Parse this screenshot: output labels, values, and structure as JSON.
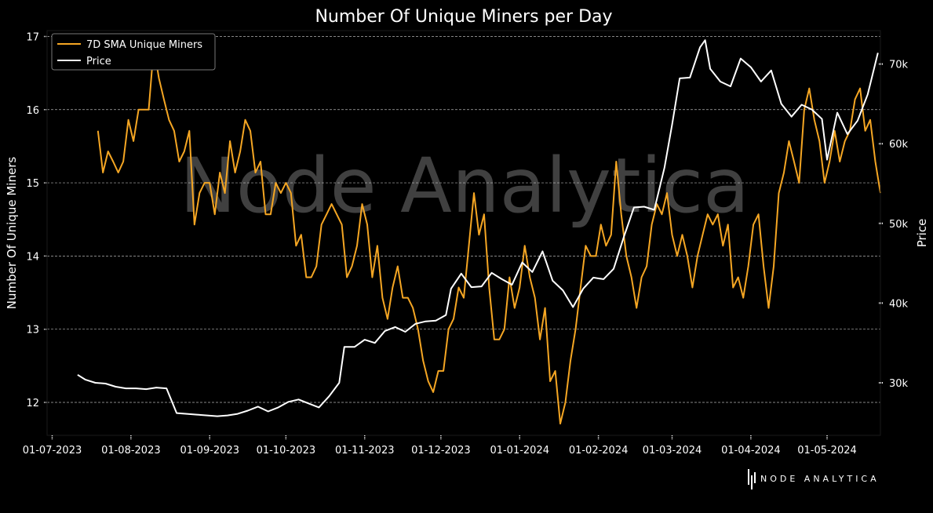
{
  "chart_data": {
    "type": "line",
    "title": "Number Of Unique Miners per Day",
    "ylabel": "Number Of Unique Miners",
    "y2label": "Price",
    "xlim": [
      "2023-06-29",
      "2024-05-22"
    ],
    "ylim": [
      11.55,
      17.08
    ],
    "y2lim": [
      23400,
      74200
    ],
    "x_ticks": [
      "2023-07-01",
      "2023-08-01",
      "2023-09-01",
      "2023-10-01",
      "2023-11-01",
      "2023-12-01",
      "2024-01-01",
      "2024-02-01",
      "2024-03-01",
      "2024-04-01",
      "2024-05-01"
    ],
    "x_tick_labels": [
      "01-07-2023",
      "01-08-2023",
      "01-09-2023",
      "01-10-2023",
      "01-11-2023",
      "01-12-2023",
      "01-01-2024",
      "01-02-2024",
      "01-03-2024",
      "01-04-2024",
      "01-05-2024"
    ],
    "y_ticks": [
      12,
      13,
      14,
      15,
      16,
      17
    ],
    "y_tick_labels": [
      "12",
      "13",
      "14",
      "15",
      "16",
      "17"
    ],
    "y2_ticks": [
      30000,
      40000,
      50000,
      60000,
      70000
    ],
    "y2_tick_labels": [
      "30k",
      "40k",
      "50k",
      "60k",
      "70k"
    ],
    "grid": "horizontal dashed",
    "legend": "top-left",
    "watermark": "Node Analytica",
    "logo": "NODE ANALYTICA",
    "series": [
      {
        "name": "7D SMA Unique Miners",
        "axis": "left",
        "color": "#f5a623",
        "points": [
          [
            "2023-07-19",
            15.71
          ],
          [
            "2023-07-21",
            15.14
          ],
          [
            "2023-07-23",
            15.43
          ],
          [
            "2023-07-25",
            15.29
          ],
          [
            "2023-07-27",
            15.14
          ],
          [
            "2023-07-29",
            15.29
          ],
          [
            "2023-07-31",
            15.86
          ],
          [
            "2023-08-02",
            15.57
          ],
          [
            "2023-08-04",
            16.0
          ],
          [
            "2023-08-06",
            16.0
          ],
          [
            "2023-08-08",
            16.0
          ],
          [
            "2023-08-10",
            16.86
          ],
          [
            "2023-08-12",
            16.43
          ],
          [
            "2023-08-14",
            16.14
          ],
          [
            "2023-08-16",
            15.86
          ],
          [
            "2023-08-18",
            15.71
          ],
          [
            "2023-08-20",
            15.29
          ],
          [
            "2023-08-22",
            15.43
          ],
          [
            "2023-08-24",
            15.71
          ],
          [
            "2023-08-26",
            14.43
          ],
          [
            "2023-08-28",
            14.86
          ],
          [
            "2023-08-30",
            15.0
          ],
          [
            "2023-09-01",
            15.0
          ],
          [
            "2023-09-03",
            14.57
          ],
          [
            "2023-09-05",
            15.14
          ],
          [
            "2023-09-07",
            14.86
          ],
          [
            "2023-09-09",
            15.57
          ],
          [
            "2023-09-11",
            15.14
          ],
          [
            "2023-09-13",
            15.43
          ],
          [
            "2023-09-15",
            15.86
          ],
          [
            "2023-09-17",
            15.71
          ],
          [
            "2023-09-19",
            15.14
          ],
          [
            "2023-09-21",
            15.29
          ],
          [
            "2023-09-23",
            14.57
          ],
          [
            "2023-09-25",
            14.57
          ],
          [
            "2023-09-27",
            15.0
          ],
          [
            "2023-09-29",
            14.86
          ],
          [
            "2023-10-01",
            15.0
          ],
          [
            "2023-10-03",
            14.86
          ],
          [
            "2023-10-05",
            14.14
          ],
          [
            "2023-10-07",
            14.29
          ],
          [
            "2023-10-09",
            13.71
          ],
          [
            "2023-10-11",
            13.71
          ],
          [
            "2023-10-13",
            13.86
          ],
          [
            "2023-10-15",
            14.43
          ],
          [
            "2023-10-17",
            14.57
          ],
          [
            "2023-10-19",
            14.71
          ],
          [
            "2023-10-21",
            14.57
          ],
          [
            "2023-10-23",
            14.43
          ],
          [
            "2023-10-25",
            13.71
          ],
          [
            "2023-10-27",
            13.86
          ],
          [
            "2023-10-29",
            14.14
          ],
          [
            "2023-10-31",
            14.71
          ],
          [
            "2023-11-02",
            14.43
          ],
          [
            "2023-11-04",
            13.71
          ],
          [
            "2023-11-06",
            14.14
          ],
          [
            "2023-11-08",
            13.43
          ],
          [
            "2023-11-10",
            13.14
          ],
          [
            "2023-11-12",
            13.57
          ],
          [
            "2023-11-14",
            13.86
          ],
          [
            "2023-11-16",
            13.43
          ],
          [
            "2023-11-18",
            13.43
          ],
          [
            "2023-11-20",
            13.29
          ],
          [
            "2023-11-22",
            13.0
          ],
          [
            "2023-11-24",
            12.57
          ],
          [
            "2023-11-26",
            12.29
          ],
          [
            "2023-11-28",
            12.14
          ],
          [
            "2023-11-30",
            12.43
          ],
          [
            "2023-12-02",
            12.43
          ],
          [
            "2023-12-04",
            13.0
          ],
          [
            "2023-12-06",
            13.14
          ],
          [
            "2023-12-08",
            13.57
          ],
          [
            "2023-12-10",
            13.43
          ],
          [
            "2023-12-12",
            14.14
          ],
          [
            "2023-12-14",
            14.86
          ],
          [
            "2023-12-16",
            14.29
          ],
          [
            "2023-12-18",
            14.57
          ],
          [
            "2023-12-20",
            13.57
          ],
          [
            "2023-12-22",
            12.86
          ],
          [
            "2023-12-24",
            12.86
          ],
          [
            "2023-12-26",
            13.0
          ],
          [
            "2023-12-28",
            13.71
          ],
          [
            "2023-12-30",
            13.29
          ],
          [
            "2024-01-01",
            13.57
          ],
          [
            "2024-01-03",
            14.14
          ],
          [
            "2024-01-05",
            13.71
          ],
          [
            "2024-01-07",
            13.43
          ],
          [
            "2024-01-09",
            12.86
          ],
          [
            "2024-01-11",
            13.29
          ],
          [
            "2024-01-13",
            12.29
          ],
          [
            "2024-01-15",
            12.43
          ],
          [
            "2024-01-17",
            11.71
          ],
          [
            "2024-01-19",
            12.0
          ],
          [
            "2024-01-21",
            12.57
          ],
          [
            "2024-01-23",
            13.0
          ],
          [
            "2024-01-25",
            13.57
          ],
          [
            "2024-01-27",
            14.14
          ],
          [
            "2024-01-29",
            14.0
          ],
          [
            "2024-01-31",
            14.0
          ],
          [
            "2024-02-02",
            14.43
          ],
          [
            "2024-02-04",
            14.14
          ],
          [
            "2024-02-06",
            14.29
          ],
          [
            "2024-02-08",
            15.29
          ],
          [
            "2024-02-10",
            14.57
          ],
          [
            "2024-02-12",
            14.0
          ],
          [
            "2024-02-14",
            13.71
          ],
          [
            "2024-02-16",
            13.29
          ],
          [
            "2024-02-18",
            13.71
          ],
          [
            "2024-02-20",
            13.86
          ],
          [
            "2024-02-22",
            14.43
          ],
          [
            "2024-02-24",
            14.71
          ],
          [
            "2024-02-26",
            14.57
          ],
          [
            "2024-02-28",
            14.86
          ],
          [
            "2024-03-01",
            14.29
          ],
          [
            "2024-03-03",
            14.0
          ],
          [
            "2024-03-05",
            14.29
          ],
          [
            "2024-03-07",
            14.0
          ],
          [
            "2024-03-09",
            13.57
          ],
          [
            "2024-03-11",
            14.0
          ],
          [
            "2024-03-13",
            14.29
          ],
          [
            "2024-03-15",
            14.57
          ],
          [
            "2024-03-17",
            14.43
          ],
          [
            "2024-03-19",
            14.57
          ],
          [
            "2024-03-21",
            14.14
          ],
          [
            "2024-03-23",
            14.43
          ],
          [
            "2024-03-25",
            13.57
          ],
          [
            "2024-03-27",
            13.71
          ],
          [
            "2024-03-29",
            13.43
          ],
          [
            "2024-03-31",
            13.86
          ],
          [
            "2024-04-02",
            14.43
          ],
          [
            "2024-04-04",
            14.57
          ],
          [
            "2024-04-06",
            13.86
          ],
          [
            "2024-04-08",
            13.29
          ],
          [
            "2024-04-10",
            13.86
          ],
          [
            "2024-04-12",
            14.86
          ],
          [
            "2024-04-14",
            15.14
          ],
          [
            "2024-04-16",
            15.57
          ],
          [
            "2024-04-18",
            15.29
          ],
          [
            "2024-04-20",
            15.0
          ],
          [
            "2024-04-22",
            16.0
          ],
          [
            "2024-04-24",
            16.29
          ],
          [
            "2024-04-26",
            15.86
          ],
          [
            "2024-04-28",
            15.57
          ],
          [
            "2024-04-30",
            15.0
          ],
          [
            "2024-05-02",
            15.29
          ],
          [
            "2024-05-04",
            15.71
          ],
          [
            "2024-05-06",
            15.29
          ],
          [
            "2024-05-08",
            15.57
          ],
          [
            "2024-05-10",
            15.71
          ],
          [
            "2024-05-12",
            16.14
          ],
          [
            "2024-05-14",
            16.29
          ],
          [
            "2024-05-16",
            15.71
          ],
          [
            "2024-05-18",
            15.86
          ],
          [
            "2024-05-20",
            15.29
          ],
          [
            "2024-05-22",
            14.86
          ]
        ]
      },
      {
        "name": "Price",
        "axis": "right",
        "color": "#ffffff",
        "points": [
          [
            "2023-07-11",
            31.0
          ],
          [
            "2023-07-14",
            30.4
          ],
          [
            "2023-07-18",
            30.0
          ],
          [
            "2023-07-22",
            29.9
          ],
          [
            "2023-07-26",
            29.5
          ],
          [
            "2023-07-30",
            29.3
          ],
          [
            "2023-08-03",
            29.3
          ],
          [
            "2023-08-07",
            29.2
          ],
          [
            "2023-08-11",
            29.4
          ],
          [
            "2023-08-15",
            29.3
          ],
          [
            "2023-08-19",
            26.2
          ],
          [
            "2023-08-23",
            26.1
          ],
          [
            "2023-08-27",
            26.0
          ],
          [
            "2023-08-31",
            25.9
          ],
          [
            "2023-09-04",
            25.8
          ],
          [
            "2023-09-08",
            25.9
          ],
          [
            "2023-09-12",
            26.1
          ],
          [
            "2023-09-16",
            26.5
          ],
          [
            "2023-09-20",
            27.0
          ],
          [
            "2023-09-24",
            26.4
          ],
          [
            "2023-09-28",
            26.9
          ],
          [
            "2023-10-02",
            27.6
          ],
          [
            "2023-10-06",
            27.9
          ],
          [
            "2023-10-10",
            27.4
          ],
          [
            "2023-10-14",
            26.9
          ],
          [
            "2023-10-18",
            28.3
          ],
          [
            "2023-10-22",
            30.0
          ],
          [
            "2023-10-24",
            34.5
          ],
          [
            "2023-10-28",
            34.5
          ],
          [
            "2023-11-01",
            35.4
          ],
          [
            "2023-11-05",
            35.0
          ],
          [
            "2023-11-09",
            36.5
          ],
          [
            "2023-11-13",
            37.0
          ],
          [
            "2023-11-17",
            36.4
          ],
          [
            "2023-11-21",
            37.4
          ],
          [
            "2023-11-25",
            37.7
          ],
          [
            "2023-11-29",
            37.8
          ],
          [
            "2023-12-03",
            38.5
          ],
          [
            "2023-12-05",
            41.8
          ],
          [
            "2023-12-09",
            43.7
          ],
          [
            "2023-12-13",
            42.0
          ],
          [
            "2023-12-17",
            42.1
          ],
          [
            "2023-12-21",
            43.8
          ],
          [
            "2023-12-25",
            43.0
          ],
          [
            "2023-12-29",
            42.3
          ],
          [
            "2024-01-02",
            45.1
          ],
          [
            "2024-01-06",
            43.9
          ],
          [
            "2024-01-10",
            46.5
          ],
          [
            "2024-01-14",
            42.8
          ],
          [
            "2024-01-18",
            41.6
          ],
          [
            "2024-01-22",
            39.5
          ],
          [
            "2024-01-26",
            41.8
          ],
          [
            "2024-01-30",
            43.2
          ],
          [
            "2024-02-03",
            43.0
          ],
          [
            "2024-02-07",
            44.3
          ],
          [
            "2024-02-11",
            48.3
          ],
          [
            "2024-02-15",
            52.0
          ],
          [
            "2024-02-19",
            52.1
          ],
          [
            "2024-02-23",
            51.7
          ],
          [
            "2024-02-27",
            57.0
          ],
          [
            "2024-03-01",
            62.4
          ],
          [
            "2024-03-04",
            68.2
          ],
          [
            "2024-03-08",
            68.3
          ],
          [
            "2024-03-12",
            72.1
          ],
          [
            "2024-03-14",
            73.0
          ],
          [
            "2024-03-16",
            69.4
          ],
          [
            "2024-03-20",
            67.8
          ],
          [
            "2024-03-24",
            67.2
          ],
          [
            "2024-03-28",
            70.7
          ],
          [
            "2024-04-01",
            69.6
          ],
          [
            "2024-04-05",
            67.8
          ],
          [
            "2024-04-09",
            69.2
          ],
          [
            "2024-04-13",
            65.0
          ],
          [
            "2024-04-17",
            63.4
          ],
          [
            "2024-04-21",
            64.9
          ],
          [
            "2024-04-25",
            64.3
          ],
          [
            "2024-04-29",
            63.1
          ],
          [
            "2024-05-01",
            58.0
          ],
          [
            "2024-05-05",
            63.9
          ],
          [
            "2024-05-09",
            61.2
          ],
          [
            "2024-05-13",
            62.9
          ],
          [
            "2024-05-17",
            66.2
          ],
          [
            "2024-05-21",
            71.4
          ]
        ]
      }
    ]
  }
}
